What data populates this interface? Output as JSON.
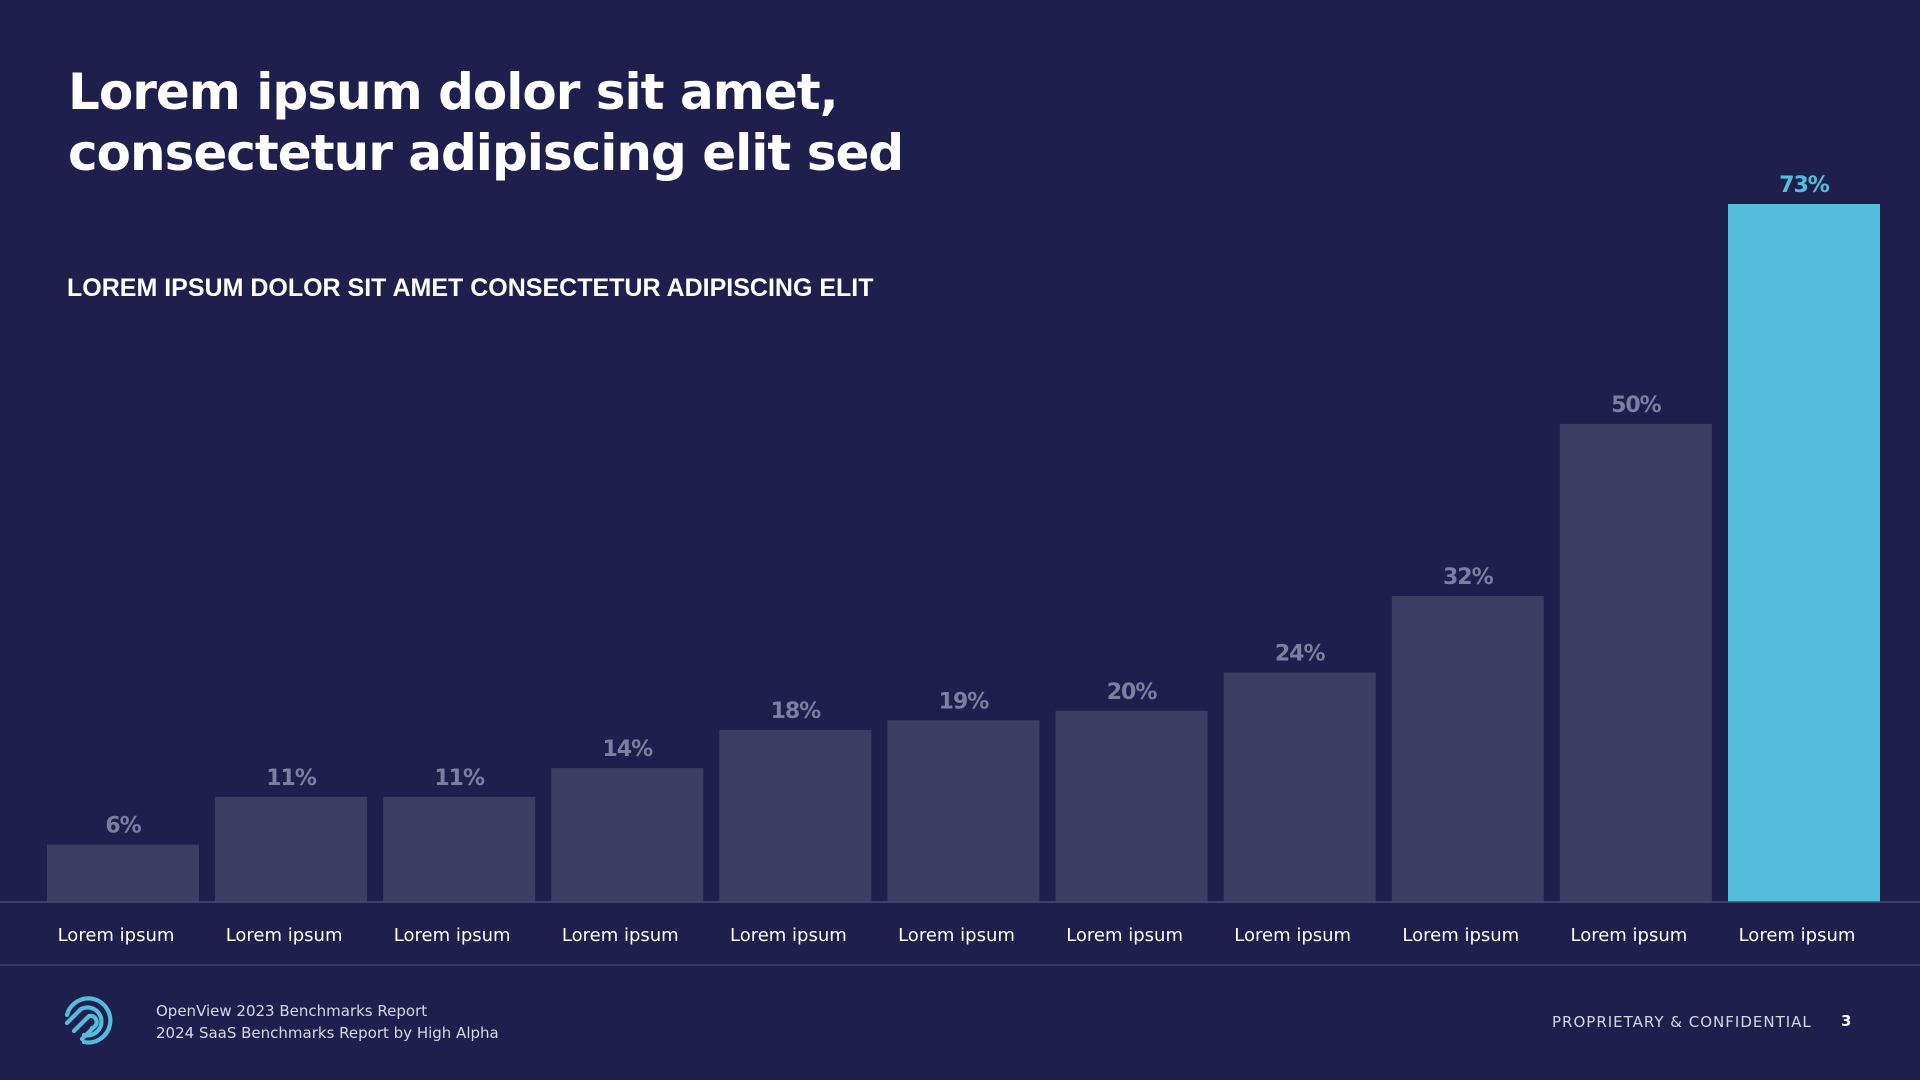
{
  "slide": {
    "title_line1": "Lorem ipsum dolor sit amet,",
    "title_line2": "consectetur adipiscing elit sed",
    "subtitle": "LOREM IPSUM DOLOR SIT AMET CONSECTETUR ADIPISCING ELIT"
  },
  "chart_data": {
    "type": "bar",
    "categories": [
      "Lorem ipsum",
      "Lorem ipsum",
      "Lorem ipsum",
      "Lorem ipsum",
      "Lorem ipsum",
      "Lorem ipsum",
      "Lorem ipsum",
      "Lorem ipsum",
      "Lorem ipsum",
      "Lorem ipsum",
      "Lorem ipsum"
    ],
    "values": [
      6,
      11,
      11,
      14,
      18,
      19,
      20,
      24,
      32,
      50,
      73
    ],
    "value_labels": [
      "6%",
      "11%",
      "11%",
      "14%",
      "18%",
      "19%",
      "20%",
      "24%",
      "32%",
      "50%",
      "73%"
    ],
    "highlight_index": 10,
    "ylim": [
      0,
      73
    ],
    "grid": false,
    "colors": {
      "bar": "#3c3d63",
      "highlight": "#55bddc",
      "value_label": "#7d7f9e"
    }
  },
  "footer": {
    "logo_icon": "high-alpha-logo-icon",
    "source_line1": "OpenView 2023 Benchmarks Report",
    "source_line2": "2024 SaaS Benchmarks Report by High Alpha",
    "confidential": "PROPRIETARY & CONFIDENTIAL",
    "page_number": "3"
  },
  "colors": {
    "background": "#1e1f4d",
    "accent": "#55bddc"
  }
}
